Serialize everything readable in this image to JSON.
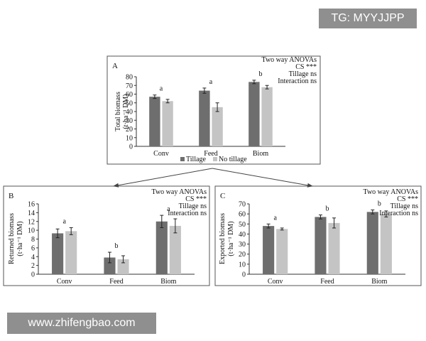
{
  "watermarks": {
    "top_right": "TG: MYYJJPP",
    "bottom_left": "www.zhifengbao.com"
  },
  "colors": {
    "tillage": "#6e6e6e",
    "no_tillage": "#c4c4c4",
    "panel_border": "#555555"
  },
  "legend": {
    "tillage": "Tillage",
    "no_tillage": "No tillage"
  },
  "chart_data": [
    {
      "panel": "A",
      "type": "bar",
      "ylabel_line1": "Total biomass",
      "ylabel_line2": "(t·ha⁻¹ DM)",
      "categories": [
        "Conv",
        "Feed",
        "Biom"
      ],
      "ylim": [
        0,
        80
      ],
      "yticks": [
        0,
        10,
        20,
        30,
        40,
        50,
        60,
        70,
        80
      ],
      "series": [
        {
          "name": "Tillage",
          "values": [
            57,
            64,
            74
          ],
          "errors": [
            2,
            3,
            2
          ]
        },
        {
          "name": "No tillage",
          "values": [
            52,
            45,
            68
          ],
          "errors": [
            2,
            5,
            2
          ]
        }
      ],
      "letters": [
        "a",
        "a",
        "b"
      ],
      "anova": [
        "Two way ANOVAs",
        "CS ***",
        "Tillage ns",
        "Interaction ns"
      ],
      "legend_position": "bottom"
    },
    {
      "panel": "B",
      "type": "bar",
      "ylabel_line1": "Returned biomass",
      "ylabel_line2": "(t·ha⁻¹ DM)",
      "categories": [
        "Conv",
        "Feed",
        "Biom"
      ],
      "ylim": [
        0,
        16
      ],
      "yticks": [
        0,
        2,
        4,
        6,
        8,
        10,
        12,
        14,
        16
      ],
      "series": [
        {
          "name": "Tillage",
          "values": [
            9.3,
            3.8,
            12.0
          ],
          "errors": [
            1.0,
            1.2,
            1.4
          ]
        },
        {
          "name": "No tillage",
          "values": [
            9.8,
            3.4,
            11.0
          ],
          "errors": [
            0.8,
            0.8,
            1.6
          ]
        }
      ],
      "letters": [
        "a",
        "b",
        "a"
      ],
      "anova": [
        "Two way ANOVAs",
        "CS ***",
        "Tillage ns",
        "Interaction ns"
      ]
    },
    {
      "panel": "C",
      "type": "bar",
      "ylabel_line1": "Exported biomass",
      "ylabel_line2": "(t·ha⁻¹ DM)",
      "categories": [
        "Conv",
        "Feed",
        "Biom"
      ],
      "ylim": [
        0,
        70
      ],
      "yticks": [
        0,
        10,
        20,
        30,
        40,
        50,
        60,
        70
      ],
      "series": [
        {
          "name": "Tillage",
          "values": [
            48,
            57,
            62
          ],
          "errors": [
            2,
            2,
            2
          ]
        },
        {
          "name": "No tillage",
          "values": [
            45,
            51,
            60
          ],
          "errors": [
            1,
            5,
            3
          ]
        }
      ],
      "letters": [
        "a",
        "b",
        "b"
      ],
      "anova": [
        "Two way ANOVAs",
        "CS ***",
        "Tillage ns",
        "Interaction ns"
      ]
    }
  ]
}
